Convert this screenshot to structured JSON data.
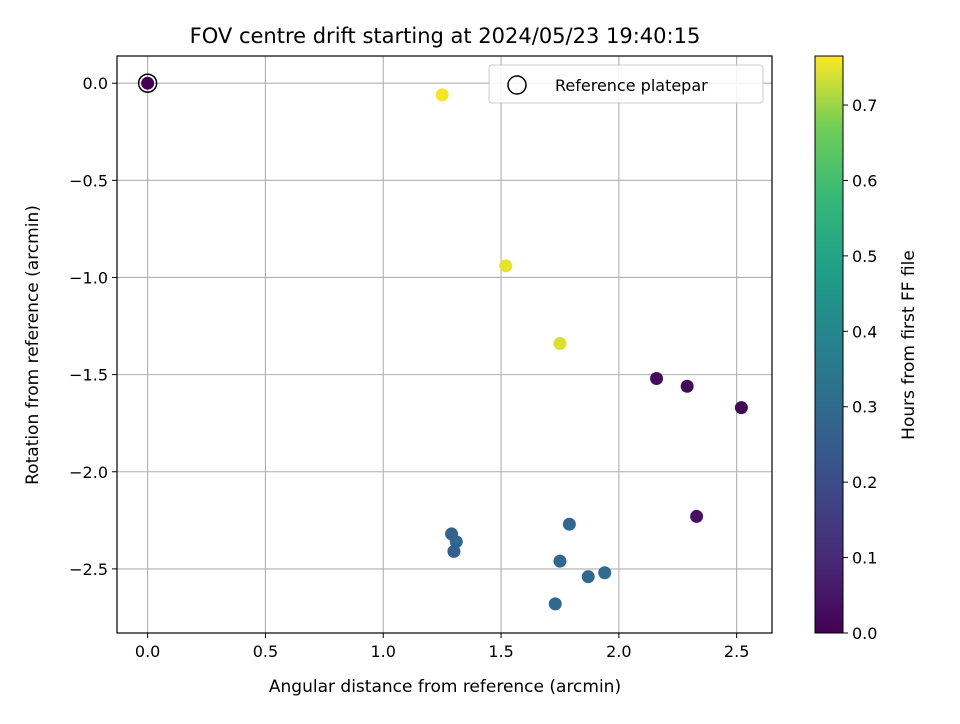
{
  "chart_data": {
    "type": "scatter",
    "title": "FOV centre drift starting at 2024/05/23 19:40:15",
    "xlabel": "Angular distance from reference (arcmin)",
    "ylabel": "Rotation from reference (arcmin)",
    "xlim": [
      -0.13,
      2.65
    ],
    "ylim": [
      -2.83,
      0.14
    ],
    "xticks": [
      0.0,
      0.5,
      1.0,
      1.5,
      2.0,
      2.5
    ],
    "xtick_labels": [
      "0.0",
      "0.5",
      "1.0",
      "1.5",
      "2.0",
      "2.5"
    ],
    "yticks": [
      0.0,
      -0.5,
      -1.0,
      -1.5,
      -2.0,
      -2.5
    ],
    "ytick_labels": [
      "0.0",
      "−0.5",
      "−1.0",
      "−1.5",
      "−2.0",
      "−2.5"
    ],
    "grid": true,
    "colorbar": {
      "label": "Hours from first FF file",
      "range": [
        0.0,
        0.765
      ],
      "colormap": "viridis",
      "ticks": [
        0.0,
        0.1,
        0.2,
        0.3,
        0.4,
        0.5,
        0.6,
        0.7
      ],
      "tick_labels": [
        "0.0",
        "0.1",
        "0.2",
        "0.3",
        "0.4",
        "0.5",
        "0.6",
        "0.7"
      ]
    },
    "legend": {
      "placement": "top-right",
      "entries": [
        {
          "label": "Reference platepar",
          "marker": "open-circle"
        }
      ]
    },
    "points": [
      {
        "x": 0.0,
        "y": 0.0,
        "hours": 0.0
      },
      {
        "x": 1.25,
        "y": -0.06,
        "hours": 0.76
      },
      {
        "x": 1.52,
        "y": -0.94,
        "hours": 0.75
      },
      {
        "x": 1.75,
        "y": -1.34,
        "hours": 0.74
      },
      {
        "x": 2.16,
        "y": -1.52,
        "hours": 0.03
      },
      {
        "x": 2.29,
        "y": -1.56,
        "hours": 0.02
      },
      {
        "x": 2.52,
        "y": -1.67,
        "hours": 0.02
      },
      {
        "x": 2.33,
        "y": -2.23,
        "hours": 0.04
      },
      {
        "x": 1.79,
        "y": -2.27,
        "hours": 0.29
      },
      {
        "x": 1.29,
        "y": -2.32,
        "hours": 0.27
      },
      {
        "x": 1.31,
        "y": -2.36,
        "hours": 0.28
      },
      {
        "x": 1.3,
        "y": -2.41,
        "hours": 0.26
      },
      {
        "x": 1.75,
        "y": -2.46,
        "hours": 0.28
      },
      {
        "x": 1.87,
        "y": -2.54,
        "hours": 0.29
      },
      {
        "x": 1.94,
        "y": -2.52,
        "hours": 0.3
      },
      {
        "x": 1.73,
        "y": -2.68,
        "hours": 0.29
      }
    ],
    "reference_point": {
      "x": 0.0,
      "y": 0.0
    }
  }
}
